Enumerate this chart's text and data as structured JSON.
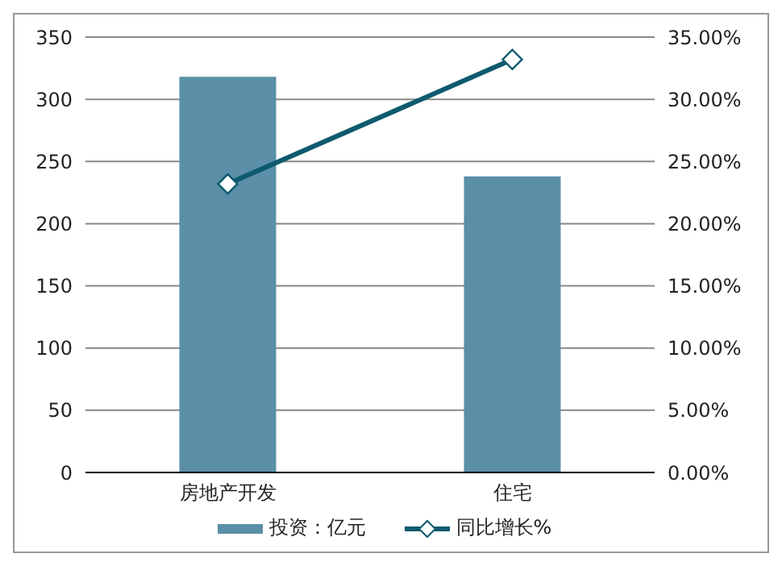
{
  "chart_data": {
    "type": "bar",
    "categories": [
      "房地产开发",
      "住宅"
    ],
    "series": [
      {
        "name": "投资：亿元",
        "color": "#5b8fa8",
        "values": [
          318,
          238
        ]
      },
      {
        "name": "同比增长%",
        "type": "line",
        "axis": "y2",
        "color": "#0e5a6e",
        "marker": "diamond",
        "values": [
          23.2,
          33.2
        ]
      }
    ],
    "ylim": [
      0,
      350
    ],
    "yticks": [
      0,
      50,
      100,
      150,
      200,
      250,
      300,
      350
    ],
    "y2lim": [
      0,
      35
    ],
    "y2ticks": [
      {
        "value": 0,
        "label": "0.00%"
      },
      {
        "value": 5,
        "label": "5.00%"
      },
      {
        "value": 10,
        "label": "10.00%"
      },
      {
        "value": 15,
        "label": "15.00%"
      },
      {
        "value": 20,
        "label": "20.00%"
      },
      {
        "value": 25,
        "label": "25.00%"
      },
      {
        "value": 30,
        "label": "30.00%"
      },
      {
        "value": 35,
        "label": "35.00%"
      }
    ],
    "grid": "y",
    "legend": "bottom"
  }
}
